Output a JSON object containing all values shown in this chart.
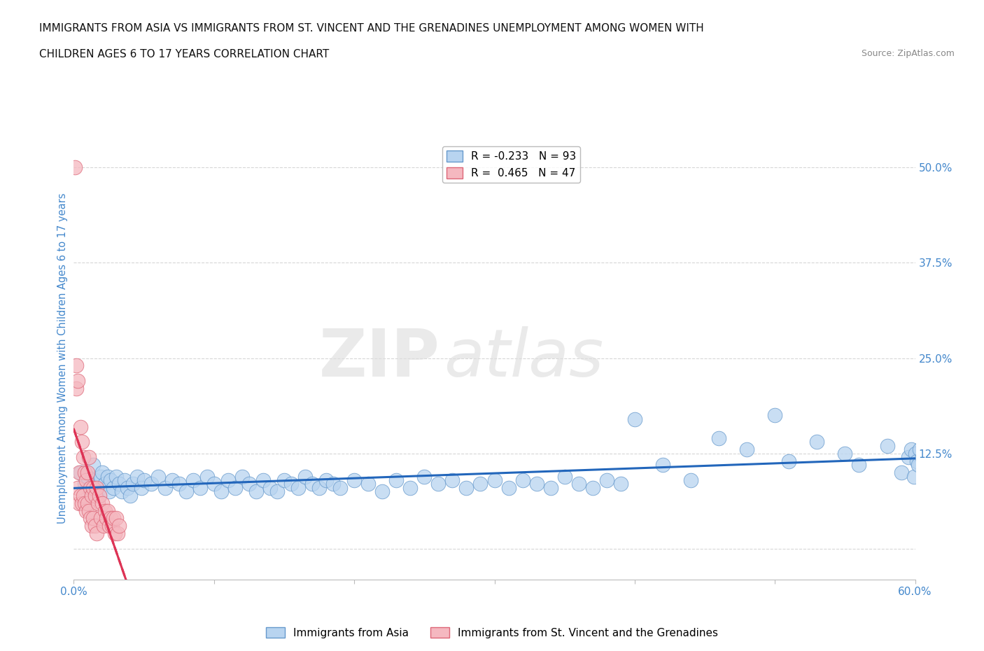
{
  "title_line1": "IMMIGRANTS FROM ASIA VS IMMIGRANTS FROM ST. VINCENT AND THE GRENADINES UNEMPLOYMENT AMONG WOMEN WITH",
  "title_line2": "CHILDREN AGES 6 TO 17 YEARS CORRELATION CHART",
  "source_text": "Source: ZipAtlas.com",
  "ylabel": "Unemployment Among Women with Children Ages 6 to 17 years",
  "xmin": 0.0,
  "xmax": 0.6,
  "ymin": -0.04,
  "ymax": 0.54,
  "yticks": [
    0.0,
    0.125,
    0.25,
    0.375,
    0.5
  ],
  "ytick_labels": [
    "",
    "12.5%",
    "25.0%",
    "37.5%",
    "50.0%"
  ],
  "xtick_labels_show": [
    "0.0%",
    "60.0%"
  ],
  "xtick_show_pos": [
    0.0,
    0.6
  ],
  "series_asia": {
    "label": "Immigrants from Asia",
    "color": "#b8d4f0",
    "edge_color": "#6699cc",
    "R": -0.233,
    "N": 93,
    "line_color": "#2266bb",
    "x": [
      0.005,
      0.008,
      0.01,
      0.012,
      0.014,
      0.015,
      0.016,
      0.018,
      0.019,
      0.02,
      0.022,
      0.024,
      0.025,
      0.026,
      0.028,
      0.03,
      0.032,
      0.034,
      0.036,
      0.038,
      0.04,
      0.042,
      0.045,
      0.048,
      0.05,
      0.055,
      0.06,
      0.065,
      0.07,
      0.075,
      0.08,
      0.085,
      0.09,
      0.095,
      0.1,
      0.105,
      0.11,
      0.115,
      0.12,
      0.125,
      0.13,
      0.135,
      0.14,
      0.145,
      0.15,
      0.155,
      0.16,
      0.165,
      0.17,
      0.175,
      0.18,
      0.185,
      0.19,
      0.2,
      0.21,
      0.22,
      0.23,
      0.24,
      0.25,
      0.26,
      0.27,
      0.28,
      0.29,
      0.3,
      0.31,
      0.32,
      0.33,
      0.34,
      0.35,
      0.36,
      0.37,
      0.38,
      0.39,
      0.4,
      0.42,
      0.44,
      0.46,
      0.48,
      0.5,
      0.51,
      0.53,
      0.55,
      0.56,
      0.58,
      0.59,
      0.595,
      0.597,
      0.599,
      0.6,
      0.601,
      0.602,
      0.603,
      0.605
    ],
    "y": [
      0.1,
      0.085,
      0.095,
      0.075,
      0.11,
      0.09,
      0.08,
      0.07,
      0.095,
      0.1,
      0.085,
      0.095,
      0.075,
      0.09,
      0.08,
      0.095,
      0.085,
      0.075,
      0.09,
      0.08,
      0.07,
      0.085,
      0.095,
      0.08,
      0.09,
      0.085,
      0.095,
      0.08,
      0.09,
      0.085,
      0.075,
      0.09,
      0.08,
      0.095,
      0.085,
      0.075,
      0.09,
      0.08,
      0.095,
      0.085,
      0.075,
      0.09,
      0.08,
      0.075,
      0.09,
      0.085,
      0.08,
      0.095,
      0.085,
      0.08,
      0.09,
      0.085,
      0.08,
      0.09,
      0.085,
      0.075,
      0.09,
      0.08,
      0.095,
      0.085,
      0.09,
      0.08,
      0.085,
      0.09,
      0.08,
      0.09,
      0.085,
      0.08,
      0.095,
      0.085,
      0.08,
      0.09,
      0.085,
      0.17,
      0.11,
      0.09,
      0.145,
      0.13,
      0.175,
      0.115,
      0.14,
      0.125,
      0.11,
      0.135,
      0.1,
      0.12,
      0.13,
      0.095,
      0.125,
      0.115,
      0.11,
      0.13,
      0.12
    ]
  },
  "series_svg": {
    "label": "Immigrants from St. Vincent and the Grenadines",
    "color": "#f5b8c0",
    "edge_color": "#dd6677",
    "R": 0.465,
    "N": 47,
    "line_color": "#dd3355",
    "x": [
      0.001,
      0.002,
      0.002,
      0.003,
      0.003,
      0.004,
      0.004,
      0.005,
      0.005,
      0.006,
      0.006,
      0.007,
      0.007,
      0.008,
      0.008,
      0.009,
      0.009,
      0.01,
      0.01,
      0.011,
      0.011,
      0.012,
      0.012,
      0.013,
      0.013,
      0.014,
      0.014,
      0.015,
      0.015,
      0.016,
      0.016,
      0.017,
      0.018,
      0.019,
      0.02,
      0.021,
      0.022,
      0.023,
      0.024,
      0.025,
      0.026,
      0.027,
      0.028,
      0.029,
      0.03,
      0.031,
      0.032
    ],
    "y": [
      0.5,
      0.24,
      0.21,
      0.22,
      0.08,
      0.1,
      0.06,
      0.16,
      0.07,
      0.14,
      0.06,
      0.12,
      0.07,
      0.1,
      0.06,
      0.09,
      0.05,
      0.1,
      0.06,
      0.12,
      0.05,
      0.08,
      0.04,
      0.07,
      0.03,
      0.08,
      0.04,
      0.07,
      0.03,
      0.08,
      0.02,
      0.06,
      0.07,
      0.04,
      0.06,
      0.03,
      0.05,
      0.04,
      0.05,
      0.03,
      0.04,
      0.03,
      0.04,
      0.02,
      0.04,
      0.02,
      0.03
    ]
  },
  "watermark_zip": "ZIP",
  "watermark_atlas": "atlas",
  "background_color": "#ffffff",
  "grid_color": "#cccccc",
  "title_color": "#111111",
  "tick_label_color": "#4488cc"
}
